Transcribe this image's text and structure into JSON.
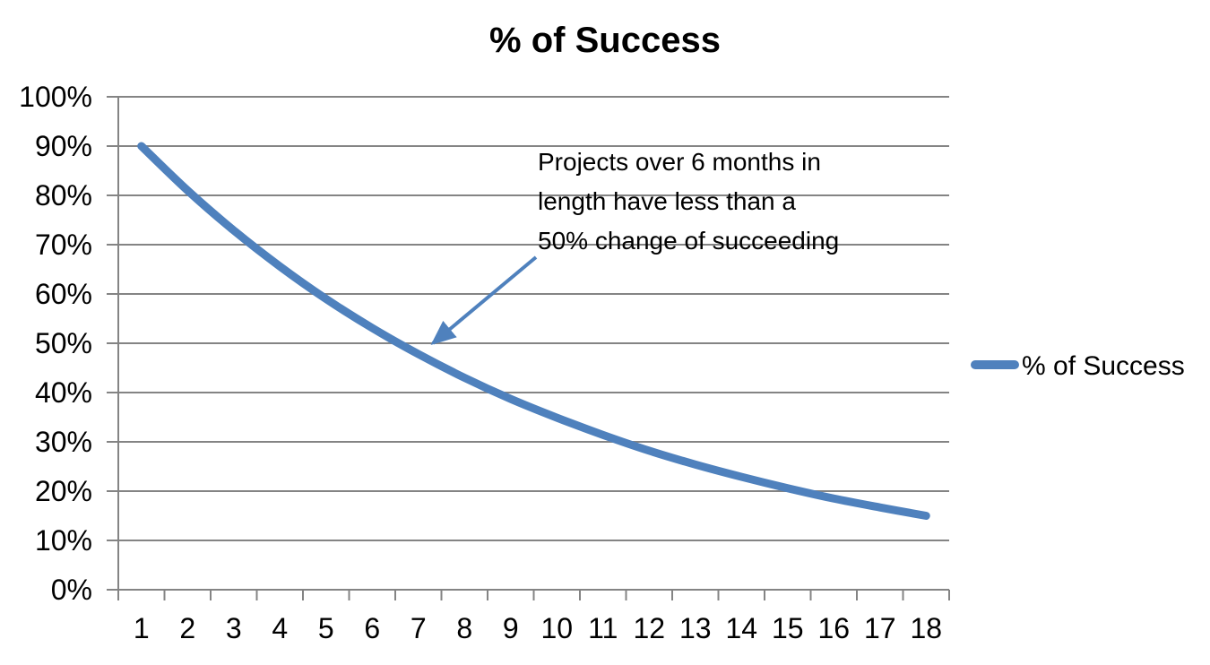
{
  "chart_data": {
    "type": "line",
    "title": "% of Success",
    "categories": [
      1,
      2,
      3,
      4,
      5,
      6,
      7,
      8,
      9,
      10,
      11,
      12,
      13,
      14,
      15,
      16,
      17,
      18
    ],
    "series": [
      {
        "name": "% of Success",
        "values": [
          90,
          81,
          72.9,
          65.6,
          59.0,
          53.1,
          47.8,
          43.0,
          38.7,
          34.9,
          31.4,
          28.2,
          25.4,
          22.9,
          20.6,
          18.5,
          16.7,
          15.0
        ]
      }
    ],
    "xlabel": "",
    "ylabel": "",
    "ylim": [
      0,
      100
    ],
    "y_tick_step": 10,
    "y_tick_labels": [
      "0%",
      "10%",
      "20%",
      "30%",
      "40%",
      "50%",
      "60%",
      "70%",
      "80%",
      "90%",
      "100%"
    ],
    "grid": true,
    "legend_position": "right-middle"
  },
  "annotation": {
    "lines": [
      "Projects over 6 months in",
      "length have less than a",
      "50% change of succeeding"
    ],
    "arrow_points_to": "curve near month 7 at about 50%"
  },
  "legend": {
    "label": "% of Success"
  },
  "colors": {
    "accent": "#4F81BD",
    "grid": "#848484",
    "text": "#000000",
    "background": "#FFFFFF"
  }
}
